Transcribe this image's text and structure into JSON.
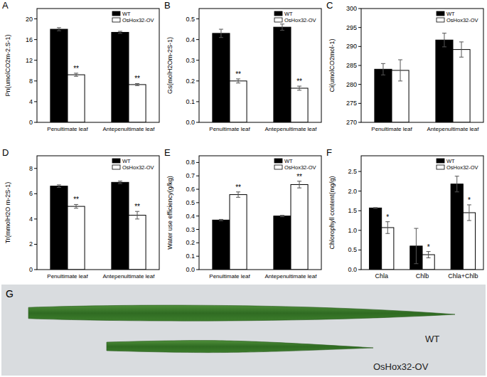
{
  "chart_data": [
    {
      "type": "bar",
      "title": "A",
      "y_label": "Pn(umolCO2m-2.S-1)",
      "categories": [
        "Penultimate leaf",
        "Antepenultimate leaf"
      ],
      "series": [
        {
          "name": "WT",
          "color": "#000000",
          "values": [
            18.0,
            17.4
          ],
          "errors": [
            0.3,
            0.2
          ]
        },
        {
          "name": "OsHox32-OV",
          "color": "#ffffff",
          "values": [
            9.2,
            7.3
          ],
          "errors": [
            0.3,
            0.2
          ],
          "annotations": [
            "**",
            "**"
          ]
        }
      ],
      "ylim": [
        0,
        22
      ],
      "yticks": [
        0,
        4,
        8,
        12,
        16,
        20
      ],
      "legend": "upper right"
    },
    {
      "type": "bar",
      "title": "B",
      "y_label": "Gs(molH2Om-2S-1)",
      "categories": [
        "Penultimate leaf",
        "Antepenultimate leaf"
      ],
      "series": [
        {
          "name": "WT",
          "color": "#000000",
          "values": [
            0.43,
            0.46
          ],
          "errors": [
            0.02,
            0.015
          ]
        },
        {
          "name": "OsHox32-OV",
          "color": "#ffffff",
          "values": [
            0.2,
            0.165
          ],
          "errors": [
            0.01,
            0.01
          ],
          "annotations": [
            "**",
            "**"
          ]
        }
      ],
      "ylim": [
        0,
        0.55
      ],
      "yticks": [
        {
          "value": 0,
          "label": "0.0"
        },
        0.1,
        0.2,
        0.3,
        0.4,
        0.5
      ],
      "legend": "upper right"
    },
    {
      "type": "bar",
      "title": "C",
      "y_label": "Ci(umolCO2mol-1)",
      "categories": [
        "Penultimate leaf",
        "Antepenultimate leaf"
      ],
      "series": [
        {
          "name": "WT",
          "color": "#000000",
          "values": [
            284.0,
            291.7
          ],
          "errors": [
            1.5,
            1.8
          ]
        },
        {
          "name": "OsHox32-OV",
          "color": "#ffffff",
          "values": [
            283.7,
            289.2
          ],
          "errors": [
            2.8,
            2.0
          ]
        }
      ],
      "ylim": [
        270,
        300
      ],
      "yticks": [
        270,
        275,
        280,
        285,
        290,
        295,
        300
      ],
      "legend": "upper right"
    },
    {
      "type": "bar",
      "title": "D",
      "y_label": "Tr(mmolH2O m-2S-1)",
      "categories": [
        "Penultimate leaf",
        "Antepenultimate leaf"
      ],
      "series": [
        {
          "name": "WT",
          "color": "#000000",
          "values": [
            6.6,
            6.9
          ],
          "errors": [
            0.1,
            0.1
          ]
        },
        {
          "name": "OsHox32-OV",
          "color": "#ffffff",
          "values": [
            5.0,
            4.3
          ],
          "errors": [
            0.15,
            0.3
          ],
          "annotations": [
            "**",
            "**"
          ]
        }
      ],
      "ylim": [
        0,
        9
      ],
      "yticks": [
        0,
        2,
        4,
        6,
        8
      ],
      "legend": "upper right"
    },
    {
      "type": "bar",
      "title": "E",
      "y_label": "Water use efficiency(g/kg)",
      "categories": [
        "Penultimate leaf",
        "Antepenultimate leaf"
      ],
      "series": [
        {
          "name": "WT",
          "color": "#000000",
          "values": [
            0.37,
            0.4
          ],
          "errors": [
            0.005,
            0.005
          ]
        },
        {
          "name": "OsHox32-OV",
          "color": "#ffffff",
          "values": [
            0.56,
            0.635
          ],
          "errors": [
            0.02,
            0.025
          ],
          "annotations": [
            "**",
            "**"
          ]
        }
      ],
      "ylim": [
        0,
        0.85
      ],
      "yticks": [
        {
          "value": 0,
          "label": "0.0"
        },
        0.1,
        0.2,
        0.3,
        0.4,
        0.5,
        0.6,
        0.7,
        0.8
      ],
      "legend": "upper right"
    },
    {
      "type": "bar",
      "title": "F",
      "y_label": "Chlorophyll content(mg/g)",
      "categories": [
        "Chla",
        "Chlb",
        "Chla+Chlb"
      ],
      "series": [
        {
          "name": "WT",
          "color": "#000000",
          "values": [
            1.57,
            0.6,
            2.18
          ],
          "errors": [
            0.01,
            0.45,
            0.2
          ]
        },
        {
          "name": "OsHox32-OV",
          "color": "#ffffff",
          "values": [
            1.07,
            0.38,
            1.45
          ],
          "errors": [
            0.15,
            0.08,
            0.2
          ],
          "annotations": [
            "*",
            "*",
            "*"
          ]
        }
      ],
      "ylim": [
        0,
        2.9
      ],
      "yticks": [
        {
          "value": 0,
          "label": "0.0"
        },
        0.5,
        {
          "value": 1,
          "label": "1.0"
        },
        1.5,
        {
          "value": 2,
          "label": "2.0"
        },
        2.5
      ],
      "legend": "upper right"
    }
  ],
  "photo": {
    "title": "G",
    "leaves": [
      {
        "label": "WT"
      },
      {
        "label": "OsHox32-OV"
      }
    ]
  }
}
